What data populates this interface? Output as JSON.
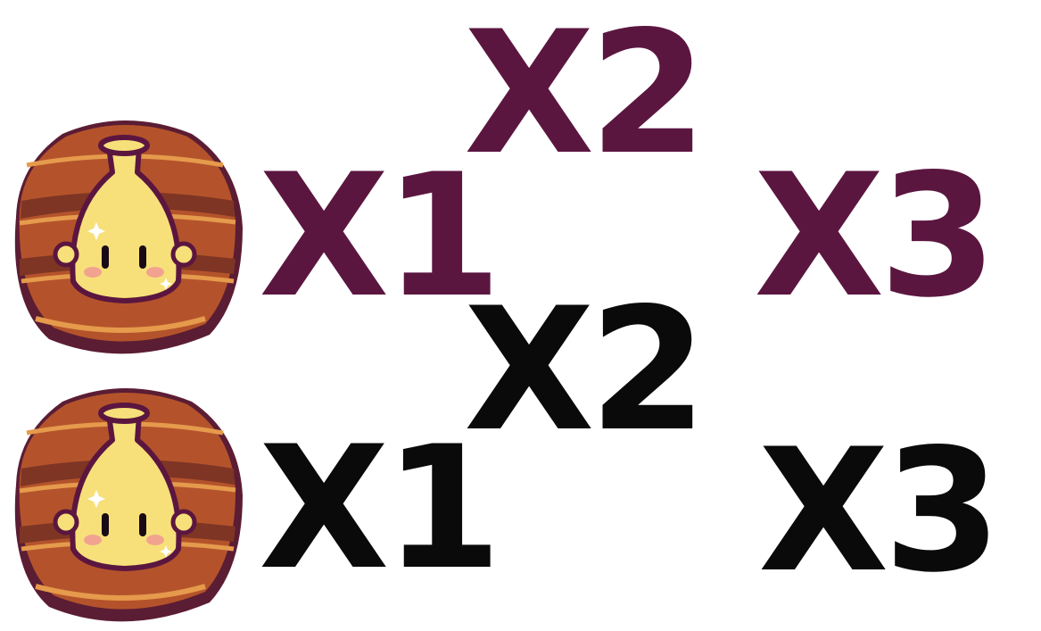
{
  "colors": {
    "purple": "#5b1640",
    "black": "#0a0a0a",
    "wood_light": "#c35f2e",
    "wood_dark": "#7e3524",
    "wood_rim": "#5b1d34",
    "wood_edge": "#e59a4c",
    "bell": "#f7e07a",
    "bell_outline": "#5b1640"
  },
  "rows": [
    {
      "token_icon": "wooden-bell-token",
      "multipliers": [
        "X1",
        "X2",
        "X3"
      ]
    },
    {
      "token_icon": "wooden-bell-token",
      "multipliers": [
        "X1",
        "X2",
        "X3"
      ]
    }
  ]
}
